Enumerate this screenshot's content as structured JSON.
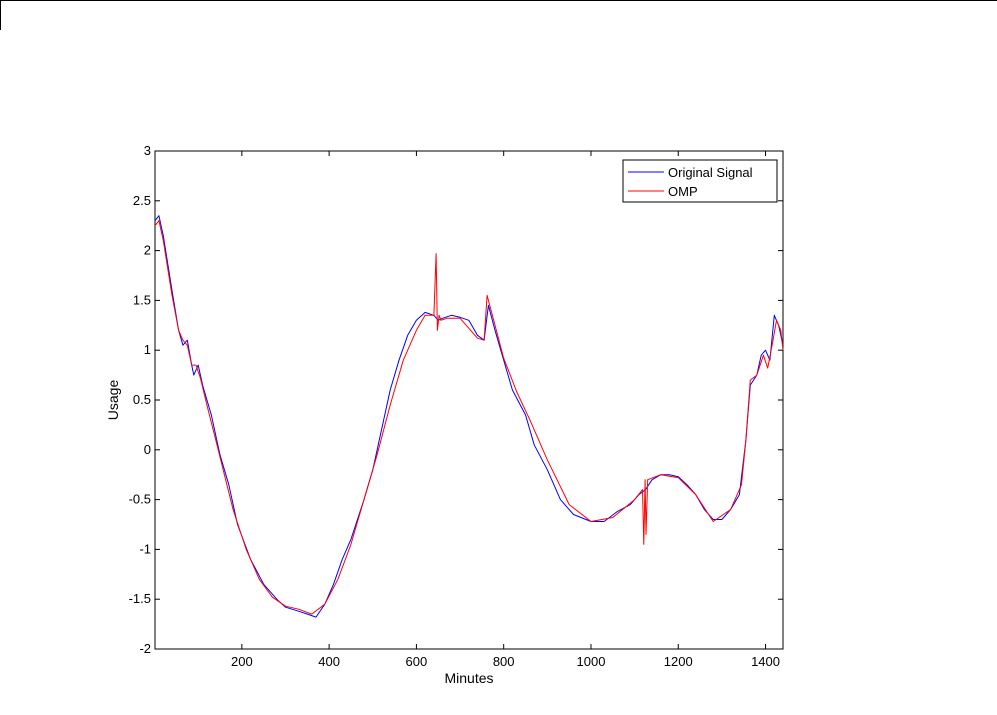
{
  "chart_data": {
    "type": "line",
    "title": "",
    "xlabel": "Minutes",
    "ylabel": "Usage",
    "xlim": [
      1,
      1440
    ],
    "ylim": [
      -2,
      3
    ],
    "xticks": [
      200,
      400,
      600,
      800,
      1000,
      1200,
      1400
    ],
    "yticks": [
      -2,
      -1.5,
      -1,
      -0.5,
      0,
      0.5,
      1,
      1.5,
      2,
      2.5,
      3
    ],
    "xtick_labels": [
      "200",
      "400",
      "600",
      "800",
      "1000",
      "1200",
      "1400"
    ],
    "ytick_labels": [
      "-2",
      "-1.5",
      "-1",
      "-0.5",
      "0",
      "0.5",
      "1",
      "1.5",
      "2",
      "2.5",
      "3"
    ],
    "grid": false,
    "legend_position": "top-right",
    "series": [
      {
        "name": "Original Signal",
        "color": "#0000ff",
        "x": [
          1,
          10,
          20,
          40,
          55,
          65,
          75,
          85,
          90,
          100,
          110,
          130,
          150,
          170,
          190,
          220,
          250,
          280,
          300,
          330,
          350,
          370,
          390,
          410,
          430,
          450,
          480,
          500,
          520,
          540,
          560,
          580,
          600,
          620,
          640,
          650,
          660,
          680,
          700,
          720,
          740,
          755,
          765,
          780,
          800,
          820,
          850,
          870,
          900,
          930,
          960,
          1000,
          1030,
          1060,
          1090,
          1110,
          1125,
          1140,
          1160,
          1180,
          1200,
          1220,
          1240,
          1260,
          1280,
          1300,
          1320,
          1340,
          1355,
          1365,
          1380,
          1390,
          1400,
          1410,
          1420,
          1430,
          1440
        ],
        "y": [
          2.3,
          2.35,
          2.15,
          1.6,
          1.2,
          1.05,
          1.1,
          0.85,
          0.75,
          0.85,
          0.65,
          0.35,
          -0.05,
          -0.35,
          -0.75,
          -1.1,
          -1.35,
          -1.5,
          -1.58,
          -1.62,
          -1.65,
          -1.68,
          -1.55,
          -1.35,
          -1.1,
          -0.9,
          -0.5,
          -0.2,
          0.2,
          0.6,
          0.9,
          1.15,
          1.3,
          1.38,
          1.35,
          1.3,
          1.32,
          1.35,
          1.33,
          1.3,
          1.15,
          1.1,
          1.45,
          1.2,
          0.9,
          0.6,
          0.35,
          0.05,
          -0.2,
          -0.5,
          -0.65,
          -0.72,
          -0.72,
          -0.62,
          -0.55,
          -0.45,
          -0.4,
          -0.3,
          -0.25,
          -0.25,
          -0.27,
          -0.35,
          -0.45,
          -0.6,
          -0.7,
          -0.7,
          -0.6,
          -0.45,
          0.1,
          0.65,
          0.75,
          0.95,
          1.0,
          0.9,
          1.35,
          1.25,
          1.05
        ]
      },
      {
        "name": "OMP",
        "color": "#ff0000",
        "x": [
          1,
          10,
          20,
          40,
          55,
          65,
          75,
          85,
          95,
          105,
          120,
          140,
          160,
          180,
          210,
          240,
          270,
          300,
          330,
          360,
          390,
          420,
          450,
          480,
          510,
          540,
          570,
          600,
          620,
          640,
          645,
          648,
          652,
          656,
          670,
          700,
          740,
          755,
          762,
          780,
          800,
          830,
          860,
          900,
          950,
          1000,
          1050,
          1100,
          1118,
          1121,
          1124,
          1126,
          1130,
          1160,
          1200,
          1240,
          1280,
          1320,
          1345,
          1355,
          1365,
          1380,
          1395,
          1405,
          1415,
          1425,
          1435,
          1440
        ],
        "y": [
          2.25,
          2.3,
          2.1,
          1.55,
          1.2,
          1.1,
          1.05,
          0.85,
          0.85,
          0.72,
          0.45,
          0.1,
          -0.25,
          -0.6,
          -1.0,
          -1.3,
          -1.48,
          -1.57,
          -1.6,
          -1.65,
          -1.55,
          -1.3,
          -0.95,
          -0.5,
          -0.05,
          0.45,
          0.9,
          1.2,
          1.35,
          1.35,
          1.97,
          1.2,
          1.35,
          1.3,
          1.32,
          1.32,
          1.12,
          1.1,
          1.55,
          1.25,
          0.92,
          0.58,
          0.3,
          -0.1,
          -0.55,
          -0.72,
          -0.68,
          -0.5,
          -0.4,
          -0.95,
          -0.3,
          -0.85,
          -0.3,
          -0.25,
          -0.28,
          -0.45,
          -0.72,
          -0.6,
          -0.35,
          0.1,
          0.7,
          0.75,
          0.95,
          0.82,
          1.05,
          1.3,
          1.2,
          1.0
        ]
      }
    ]
  }
}
